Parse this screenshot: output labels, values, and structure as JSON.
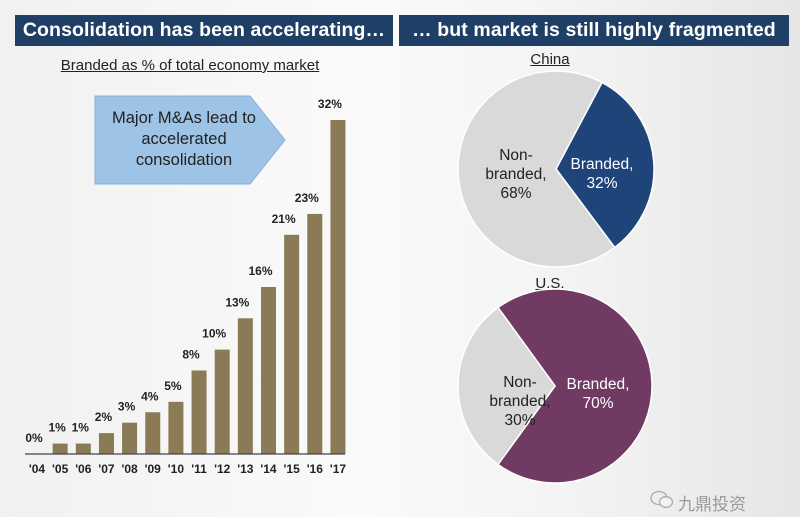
{
  "headers": {
    "left": "Consolidation has been accelerating…",
    "right": "… but market is still highly fragmented"
  },
  "callout": {
    "text": "Major M&As lead to accelerated consolidation"
  },
  "colors": {
    "header_bg": "#1f3f66",
    "bar": "#8a7a56",
    "china_branded": "#1e4479",
    "us_branded": "#703a62",
    "non_branded": "#d9d9d9",
    "callout_fill": "#9dc3e6"
  },
  "watermark": "九鼎投资",
  "chart_data": [
    {
      "type": "bar",
      "title": "Branded as % of total economy market",
      "xlabel": "",
      "ylabel": "",
      "categories": [
        "'04",
        "'05",
        "'06",
        "'07",
        "'08",
        "'09",
        "'10",
        "'11",
        "'12",
        "'13",
        "'14",
        "'15",
        "'16",
        "'17"
      ],
      "values": [
        0,
        1,
        1,
        2,
        3,
        4,
        5,
        8,
        10,
        13,
        16,
        21,
        23,
        32
      ],
      "labels": [
        "0%",
        "1%",
        "1%",
        "2%",
        "3%",
        "4%",
        "5%",
        "8%",
        "10%",
        "13%",
        "16%",
        "21%",
        "23%",
        "32%"
      ],
      "ylim": [
        0,
        32
      ],
      "grid": false,
      "legend": "none"
    },
    {
      "type": "pie",
      "title": "China",
      "slices": [
        {
          "name": "Branded",
          "value": 32,
          "label_line1": "Branded,",
          "label_line2": "32%"
        },
        {
          "name": "Non-branded",
          "value": 68,
          "label_line1": "Non-",
          "label_line2": "branded,",
          "label_line3": "68%"
        }
      ]
    },
    {
      "type": "pie",
      "title": "U.S.",
      "slices": [
        {
          "name": "Branded",
          "value": 70,
          "label_line1": "Branded,",
          "label_line2": "70%"
        },
        {
          "name": "Non-branded",
          "value": 30,
          "label_line1": "Non-",
          "label_line2": "branded,",
          "label_line3": "30%"
        }
      ]
    }
  ]
}
